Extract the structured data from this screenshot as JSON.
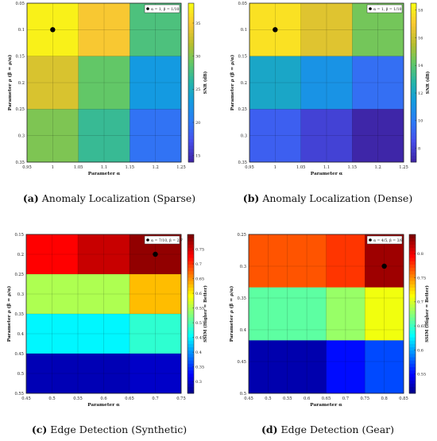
{
  "chart_data": [
    {
      "type": "heatmap",
      "caption_letter": "(a)",
      "caption_text": "Anomaly Localization (Sparse)",
      "xlabel": "Parameter α",
      "ylabel": "Parameter ρ (β = ρ/α)",
      "colorbar_label": "SNR (dB)",
      "colormap": "parula",
      "x_ticks": [
        "0.95",
        "1",
        "1.05",
        "1.1",
        "1.15",
        "1.2",
        "1.25"
      ],
      "y_ticks": [
        "0.05",
        "0.1",
        "0.15",
        "0.2",
        "0.25",
        "0.3",
        "0.35"
      ],
      "x_range": [
        0.95,
        1.25
      ],
      "y_range": [
        0.05,
        0.35
      ],
      "x_centers": [
        1.0,
        1.1,
        1.2
      ],
      "y_centers": [
        0.1,
        0.2,
        0.3
      ],
      "values": [
        [
          37.5,
          35.0,
          28.0
        ],
        [
          33.5,
          29.0,
          23.0
        ],
        [
          30.0,
          27.0,
          19.5
        ]
      ],
      "colorbar_ticks": [
        15,
        20,
        25,
        30,
        35
      ],
      "colorbar_range": [
        14,
        38
      ],
      "marker": {
        "x": 1.0,
        "y": 0.1,
        "legend": "α = 1, β = 1/10"
      }
    },
    {
      "type": "heatmap",
      "caption_letter": "(b)",
      "caption_text": "Anomaly Localization (Dense)",
      "xlabel": "Parameter α",
      "ylabel": "Parameter ρ (β = ρ/α)",
      "colorbar_label": "SNR (dB)",
      "colormap": "parula",
      "x_ticks": [
        "0.95",
        "1",
        "1.05",
        "1.1",
        "1.15",
        "1.2",
        "1.25"
      ],
      "y_ticks": [
        "0.05",
        "0.1",
        "0.15",
        "0.2",
        "0.25",
        "0.3",
        "0.35"
      ],
      "x_range": [
        0.95,
        1.25
      ],
      "y_range": [
        0.05,
        0.35
      ],
      "x_centers": [
        1.0,
        1.1,
        1.2
      ],
      "y_centers": [
        0.1,
        0.2,
        0.3
      ],
      "values": [
        [
          17.8,
          16.5,
          14.5
        ],
        [
          12.0,
          11.0,
          9.5
        ],
        [
          9.0,
          8.0,
          7.0
        ]
      ],
      "colorbar_ticks": [
        8,
        10,
        12,
        14,
        16,
        18
      ],
      "colorbar_range": [
        7,
        18.5
      ],
      "marker": {
        "x": 1.0,
        "y": 0.1,
        "legend": "α = 1, β = 1/10"
      }
    },
    {
      "type": "heatmap",
      "caption_letter": "(c)",
      "caption_text": "Edge Detection (Synthetic)",
      "xlabel": "Parameter α",
      "ylabel": "Parameter ρ (β = ρ/α)",
      "colorbar_label": "SSIM (Higher = Better)",
      "colormap": "jet",
      "x_ticks": [
        "0.45",
        "0.5",
        "0.55",
        "0.6",
        "0.65",
        "0.7",
        "0.75"
      ],
      "y_ticks": [
        "0.15",
        "0.2",
        "0.25",
        "0.3",
        "0.35",
        "0.4",
        "0.45",
        "0.5",
        "0.55"
      ],
      "x_range": [
        0.45,
        0.75
      ],
      "y_range": [
        0.15,
        0.55
      ],
      "x_centers": [
        0.5,
        0.6,
        0.7
      ],
      "y_centers": [
        0.2,
        0.3,
        0.4,
        0.5
      ],
      "values": [
        [
          0.73,
          0.76,
          0.79
        ],
        [
          0.55,
          0.55,
          0.63
        ],
        [
          0.45,
          0.45,
          0.48
        ],
        [
          0.28,
          0.28,
          0.29
        ]
      ],
      "colorbar_ticks": [
        0.3,
        0.35,
        0.4,
        0.45,
        0.5,
        0.55,
        0.6,
        0.65,
        0.7,
        0.75
      ],
      "colorbar_range": [
        0.26,
        0.8
      ],
      "marker": {
        "x": 0.7,
        "y": 0.2,
        "legend": "α = 7/10, β = 2/7"
      }
    },
    {
      "type": "heatmap",
      "caption_letter": "(d)",
      "caption_text": "Edge Detection (Gear)",
      "xlabel": "Parameter α",
      "ylabel": "Parameter ρ (β = ρ/α)",
      "colorbar_label": "SSIM (Higher = Better)",
      "colormap": "jet",
      "x_ticks": [
        "0.45",
        "0.5",
        "0.55",
        "0.6",
        "0.65",
        "0.7",
        "0.75",
        "0.8",
        "0.85"
      ],
      "y_ticks": [
        "0.25",
        "0.3",
        "0.35",
        "0.4",
        "0.45",
        "0.5"
      ],
      "x_range": [
        0.45,
        0.85
      ],
      "y_range": [
        0.25,
        0.5
      ],
      "x_centers": [
        0.5,
        0.6,
        0.7,
        0.8
      ],
      "y_centers": [
        0.3,
        0.4,
        0.5
      ],
      "values": [
        [
          0.77,
          0.77,
          0.78,
          0.83
        ],
        [
          0.66,
          0.66,
          0.68,
          0.71
        ],
        [
          0.52,
          0.52,
          0.55,
          0.57
        ]
      ],
      "colorbar_ticks": [
        0.55,
        0.6,
        0.65,
        0.7,
        0.75,
        0.8
      ],
      "colorbar_range": [
        0.51,
        0.84
      ],
      "marker": {
        "x": 0.8,
        "y": 0.3,
        "legend": "α = 4/5, β = 3/8"
      }
    }
  ]
}
